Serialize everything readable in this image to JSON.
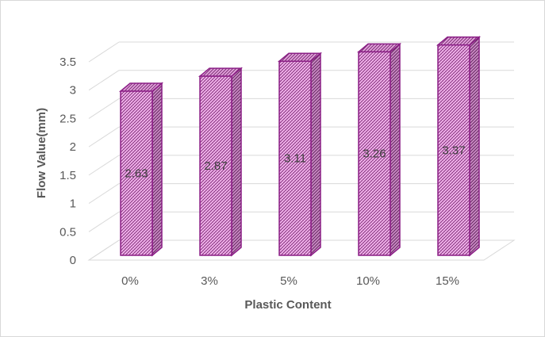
{
  "chart_data": {
    "type": "bar",
    "style": "3d-column",
    "categories": [
      "0%",
      "3%",
      "5%",
      "10%",
      "15%"
    ],
    "values": [
      2.63,
      2.87,
      3.11,
      3.26,
      3.37
    ],
    "data_labels": [
      "2.63",
      "2.87",
      "3.11",
      "3.26",
      "3.37"
    ],
    "xlabel": "Plastic Content",
    "ylabel": "Flow Value(mm)",
    "ylim": [
      0,
      3.5
    ],
    "y_ticks": [
      "0",
      "0.5",
      "1",
      "1.5",
      "2",
      "2.5",
      "3",
      "3.5"
    ],
    "grid": true,
    "legend": "none",
    "bar_fill": "pink crosshatch pattern",
    "colors": {
      "bar_front": "#f4b8ee",
      "bar_hatch": "#7a2a73",
      "bar_edge": "#8b1f86",
      "bar_side": "#c47bbd",
      "grid": "#d9d9d9"
    }
  }
}
